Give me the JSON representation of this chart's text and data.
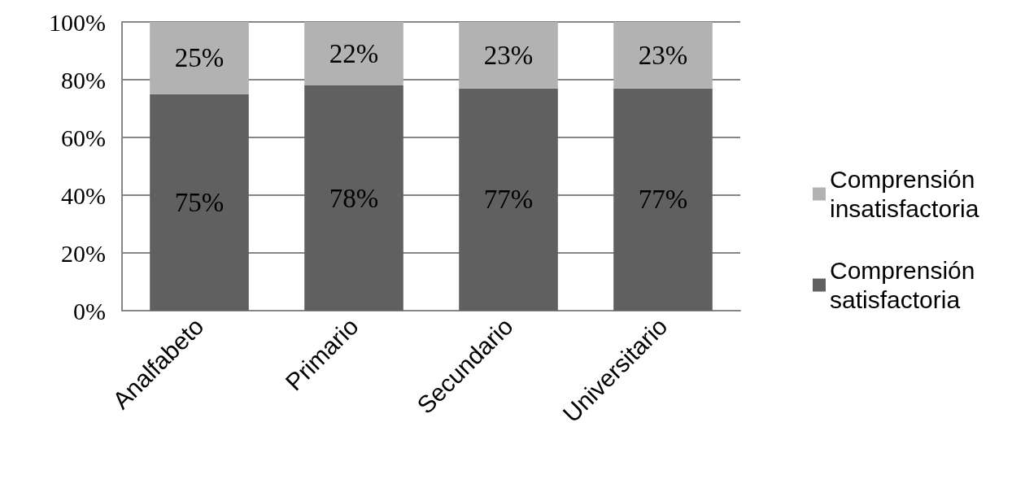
{
  "chart_data": {
    "type": "bar",
    "stacked": true,
    "categories": [
      "Analfabeto",
      "Primario",
      "Secundario",
      "Universitario"
    ],
    "series": [
      {
        "name": "Comprensión satisfactoria",
        "color": "#606060",
        "values": [
          75,
          78,
          77,
          77
        ],
        "value_labels": [
          "75%",
          "78%",
          "77%",
          "77%"
        ]
      },
      {
        "name": "Comprensión insatisfactoria",
        "color": "#b2b2b2",
        "values": [
          25,
          22,
          23,
          23
        ],
        "value_labels": [
          "25%",
          "22%",
          "23%",
          "23%"
        ]
      }
    ],
    "ylim": [
      0,
      100
    ],
    "yticks": [
      {
        "value": 0,
        "label": "0%"
      },
      {
        "value": 20,
        "label": "20%"
      },
      {
        "value": 40,
        "label": "40%"
      },
      {
        "value": 60,
        "label": "60%"
      },
      {
        "value": 80,
        "label": "80%"
      },
      {
        "value": 100,
        "label": "100%"
      }
    ],
    "grid": "y",
    "legend": "right"
  }
}
